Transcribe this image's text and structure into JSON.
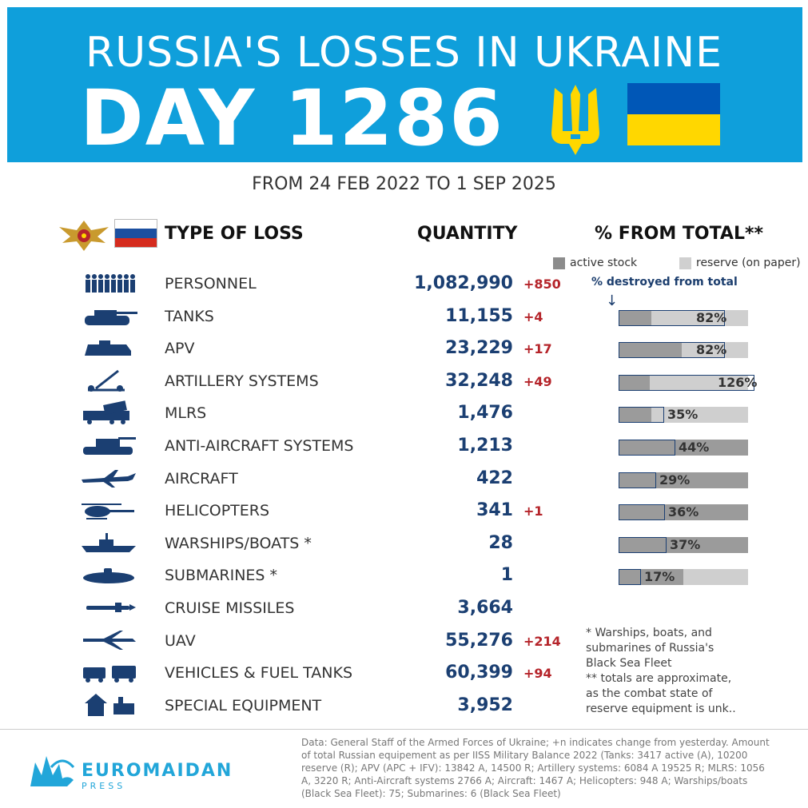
{
  "header": {
    "title": "RUSSIA'S LOSSES IN UKRAINE",
    "day_label": "DAY 1286",
    "period": "FROM 24 FEB 2022 TO 1 SEP 2025"
  },
  "columns": {
    "type": "TYPE OF LOSS",
    "quantity": "QUANTITY",
    "percent": "% FROM TOTAL**"
  },
  "legend": {
    "active": "active stock",
    "reserve": "reserve (on paper)",
    "destroyed": "% destroyed from total",
    "arrow": "↓"
  },
  "colors": {
    "banner": "#0f9fdb",
    "quantity": "#1b3f72",
    "change": "#b5242a",
    "active": "#9b9b9b",
    "reserve": "#cfcfcf"
  },
  "chart_data": {
    "type": "table",
    "rows": [
      {
        "icon": "soldiers-icon",
        "label": "PERSONNEL",
        "quantity": "1,082,990",
        "change": "+850"
      },
      {
        "icon": "tank-icon",
        "label": "TANKS",
        "quantity": "11,155",
        "change": "+4",
        "percent": "82%",
        "pct": 82,
        "active_share": 25
      },
      {
        "icon": "apv-icon",
        "label": "APV",
        "quantity": "23,229",
        "change": "+17",
        "percent": "82%",
        "pct": 82,
        "active_share": 49
      },
      {
        "icon": "artillery-icon",
        "label": "ARTILLERY SYSTEMS",
        "quantity": "32,248",
        "change": "+49",
        "percent": "126%",
        "pct": 126,
        "active_share": 24
      },
      {
        "icon": "mlrs-icon",
        "label": "MLRS",
        "quantity": "1,476",
        "change": "",
        "percent": "35%",
        "pct": 35,
        "active_share": 25
      },
      {
        "icon": "anti-aircraft-icon",
        "label": "ANTI-AIRCRAFT SYSTEMS",
        "quantity": "1,213",
        "change": "",
        "percent": "44%",
        "pct": 44,
        "active_share": 100
      },
      {
        "icon": "aircraft-icon",
        "label": "AIRCRAFT",
        "quantity": "422",
        "change": "",
        "percent": "29%",
        "pct": 29,
        "active_share": 100
      },
      {
        "icon": "helicopter-icon",
        "label": "HELICOPTERS",
        "quantity": "341",
        "change": "+1",
        "percent": "36%",
        "pct": 36,
        "active_share": 100
      },
      {
        "icon": "warship-icon",
        "label": "WARSHIPS/BOATS *",
        "quantity": "28",
        "change": "",
        "percent": "37%",
        "pct": 37,
        "active_share": 100
      },
      {
        "icon": "submarine-icon",
        "label": "SUBMARINES *",
        "quantity": "1",
        "change": "",
        "percent": "17%",
        "pct": 17,
        "active_share": 50
      },
      {
        "icon": "cruise-missile-icon",
        "label": "CRUISE MISSILES",
        "quantity": "3,664",
        "change": ""
      },
      {
        "icon": "uav-icon",
        "label": "UAV",
        "quantity": "55,276",
        "change": "+214"
      },
      {
        "icon": "vehicles-icon",
        "label": "VEHICLES & FUEL TANKS",
        "quantity": "60,399",
        "change": "+94"
      },
      {
        "icon": "special-equipment-icon",
        "label": "SPECIAL EQUIPMENT",
        "quantity": "3,952",
        "change": ""
      }
    ]
  },
  "notes": [
    "* Warships, boats, and",
    "submarines of Russia's",
    "Black Sea Fleet",
    "** totals are approximate,",
    "as the combat state of",
    "reserve equipment is unk.."
  ],
  "footer": {
    "brand": "EUROMAIDAN",
    "brand_sub": "PRESS",
    "source": "Data: General Staff of the Armed Forces of Ukraine; +n indicates change from yesterday. Amount of total Russian equipement as per IISS Military Balance 2022 (Tanks: 3417 active (A), 10200 reserve (R); APV (APC + IFV): 13842 A, 14500 R; Artillery systems: 6084 A 19525 R; MLRS: 1056 A, 3220 R; Anti-Aircraft systems 2766 A; Aircraft: 1467 A; Helicopters: 948 A; Warships/boats (Black Sea Fleet): 75; Submarines: 6 (Black Sea Fleet)"
  }
}
